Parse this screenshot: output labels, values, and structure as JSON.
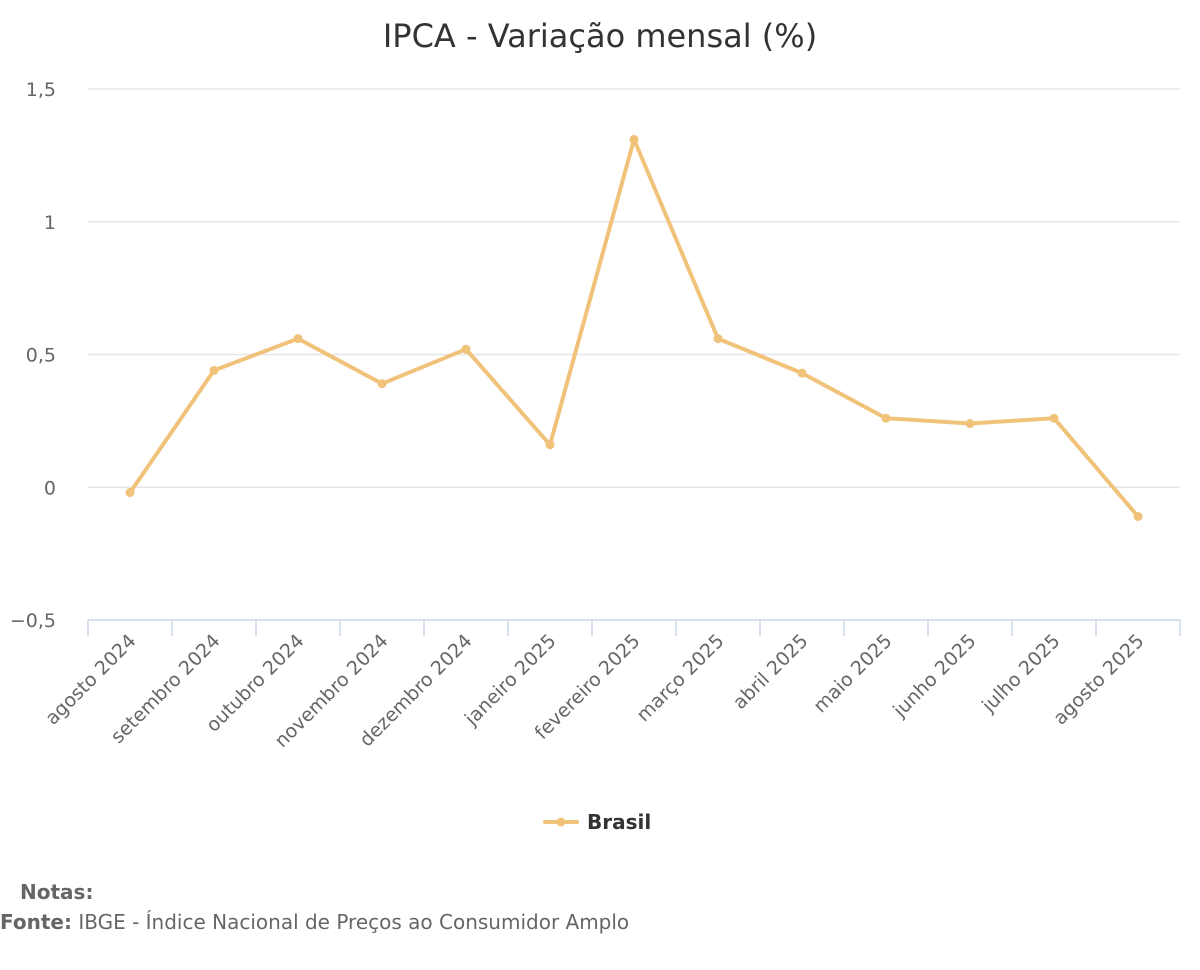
{
  "chart_data": {
    "type": "line",
    "title": "IPCA - Variação mensal (%)",
    "categories": [
      "agosto 2024",
      "setembro 2024",
      "outubro 2024",
      "novembro 2024",
      "dezembro 2024",
      "janeiro 2025",
      "fevereiro 2025",
      "março 2025",
      "abril 2025",
      "maio 2025",
      "junho 2025",
      "julho 2025",
      "agosto 2025"
    ],
    "series": [
      {
        "name": "Brasil",
        "color": "#f0c27a",
        "values": [
          -0.02,
          0.44,
          0.56,
          0.39,
          0.52,
          0.16,
          1.31,
          0.56,
          0.43,
          0.26,
          0.24,
          0.26,
          -0.11
        ]
      }
    ],
    "ylim": [
      -0.5,
      1.5
    ],
    "yticks": [
      -0.5,
      0,
      0.5,
      1,
      1.5
    ],
    "ytick_labels": [
      "−0,5",
      "0",
      "0,5",
      "1",
      "1,5"
    ],
    "grid": true,
    "legend_position": "bottom-center"
  },
  "footer": {
    "notes_label": "Notas:",
    "source_label": "Fonte:",
    "source_text": "IBGE - Índice Nacional de Preços ao Consumidor Amplo"
  }
}
